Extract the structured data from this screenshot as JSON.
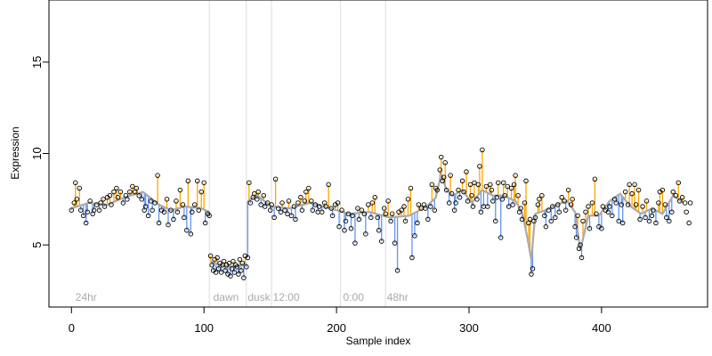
{
  "chart_data": {
    "type": "scatter",
    "title": "",
    "xlabel": "Sample index",
    "ylabel": "Expression",
    "xlim": [
      -17,
      480
    ],
    "ylim": [
      1.6,
      18.4
    ],
    "x_ticks": [
      0,
      100,
      200,
      300,
      400
    ],
    "y_ticks": [
      5,
      10,
      15
    ],
    "grid": false,
    "colors": {
      "points_stroke": "#000000",
      "fit_line": "#aaaaaa",
      "residual_above": "#ffa500",
      "residual_below": "#6495ed",
      "separators": "#dddddd",
      "annotations": "#aaaaaa"
    },
    "annotations": [
      {
        "label": "24hr",
        "x": 3
      },
      {
        "label": "dawn",
        "x": 107
      },
      {
        "label": "dusk",
        "x": 133
      },
      {
        "label": "12:00",
        "x": 152
      },
      {
        "label": "0:00",
        "x": 205
      },
      {
        "label": "48hr",
        "x": 238
      }
    ],
    "separators_x": [
      104,
      132,
      151,
      203,
      237
    ],
    "segments": [
      {
        "x": [
          0,
          13,
          27,
          40,
          54,
          66,
          75,
          86,
          98,
          104
        ],
        "y": [
          7.0,
          7.3,
          7.2,
          7.6,
          7.9,
          7.2,
          6.9,
          7.1,
          7.0,
          6.8
        ]
      },
      {
        "x": [
          105,
          112,
          120,
          128,
          132
        ],
        "y": [
          4.1,
          3.9,
          3.8,
          3.9,
          4.0
        ]
      },
      {
        "x": [
          133,
          140,
          151,
          165,
          180,
          195,
          210,
          225,
          240,
          255,
          268,
          275,
          279,
          283,
          288,
          295,
          302,
          310,
          318,
          326,
          335,
          340,
          344,
          347,
          350,
          358,
          366,
          374,
          380,
          384,
          390,
          398,
          406,
          414,
          422,
          430,
          438,
          446,
          454,
          462
        ],
        "y": [
          7.4,
          7.7,
          7.1,
          7.0,
          7.3,
          7.0,
          6.7,
          6.8,
          6.5,
          6.6,
          7.1,
          7.6,
          8.9,
          8.0,
          7.7,
          8.0,
          7.3,
          8.0,
          7.7,
          7.7,
          7.4,
          6.8,
          5.4,
          4.2,
          6.7,
          6.9,
          7.2,
          7.4,
          6.8,
          4.7,
          6.6,
          6.6,
          7.4,
          7.8,
          7.1,
          6.7,
          7.0,
          6.7,
          7.7,
          7.3
        ]
      }
    ],
    "points": [
      [
        0,
        6.9
      ],
      [
        2,
        7.3
      ],
      [
        3,
        8.4
      ],
      [
        4,
        7.5
      ],
      [
        6,
        8.1
      ],
      [
        7,
        6.9
      ],
      [
        9,
        6.6
      ],
      [
        11,
        6.2
      ],
      [
        12,
        6.8
      ],
      [
        14,
        7.4
      ],
      [
        16,
        6.7
      ],
      [
        17,
        6.9
      ],
      [
        19,
        7.2
      ],
      [
        21,
        6.9
      ],
      [
        22,
        7.3
      ],
      [
        24,
        7.5
      ],
      [
        25,
        7.1
      ],
      [
        27,
        7.6
      ],
      [
        29,
        7.7
      ],
      [
        30,
        7.2
      ],
      [
        32,
        7.9
      ],
      [
        34,
        8.1
      ],
      [
        35,
        7.6
      ],
      [
        37,
        7.9
      ],
      [
        39,
        7.3
      ],
      [
        41,
        7.7
      ],
      [
        42,
        7.5
      ],
      [
        44,
        7.9
      ],
      [
        46,
        8.2
      ],
      [
        48,
        7.9
      ],
      [
        49,
        8.1
      ],
      [
        51,
        7.7
      ],
      [
        53,
        7.5
      ],
      [
        55,
        6.9
      ],
      [
        56,
        7.1
      ],
      [
        58,
        6.6
      ],
      [
        60,
        7.4
      ],
      [
        61,
        6.9
      ],
      [
        63,
        7.3
      ],
      [
        65,
        8.8
      ],
      [
        66,
        6.2
      ],
      [
        68,
        6.9
      ],
      [
        70,
        6.8
      ],
      [
        72,
        7.5
      ],
      [
        73,
        6.1
      ],
      [
        75,
        6.9
      ],
      [
        77,
        6.4
      ],
      [
        79,
        7.4
      ],
      [
        80,
        6.8
      ],
      [
        82,
        8.0
      ],
      [
        84,
        7.2
      ],
      [
        85,
        6.5
      ],
      [
        87,
        5.8
      ],
      [
        88,
        8.5
      ],
      [
        90,
        5.6
      ],
      [
        91,
        6.8
      ],
      [
        93,
        7.2
      ],
      [
        95,
        8.5
      ],
      [
        96,
        6.9
      ],
      [
        98,
        7.9
      ],
      [
        100,
        8.4
      ],
      [
        101,
        6.2
      ],
      [
        103,
        6.7
      ],
      [
        104,
        6.6
      ],
      [
        105,
        4.4
      ],
      [
        106,
        3.9
      ],
      [
        107,
        3.6
      ],
      [
        108,
        4.2
      ],
      [
        109,
        3.5
      ],
      [
        110,
        4.3
      ],
      [
        111,
        3.7
      ],
      [
        112,
        4.0
      ],
      [
        113,
        3.5
      ],
      [
        114,
        3.9
      ],
      [
        115,
        4.1
      ],
      [
        116,
        3.6
      ],
      [
        117,
        3.9
      ],
      [
        118,
        3.4
      ],
      [
        119,
        4.0
      ],
      [
        120,
        3.3
      ],
      [
        121,
        3.7
      ],
      [
        122,
        4.1
      ],
      [
        123,
        3.5
      ],
      [
        124,
        3.9
      ],
      [
        125,
        3.8
      ],
      [
        126,
        3.4
      ],
      [
        127,
        4.2
      ],
      [
        128,
        3.6
      ],
      [
        129,
        4.0
      ],
      [
        130,
        3.2
      ],
      [
        131,
        4.4
      ],
      [
        132,
        3.8
      ],
      [
        133,
        4.3
      ],
      [
        134,
        8.4
      ],
      [
        135,
        7.3
      ],
      [
        137,
        7.6
      ],
      [
        138,
        7.8
      ],
      [
        140,
        7.5
      ],
      [
        141,
        7.9
      ],
      [
        143,
        7.2
      ],
      [
        145,
        7.7
      ],
      [
        146,
        7.1
      ],
      [
        148,
        7.3
      ],
      [
        150,
        6.9
      ],
      [
        151,
        7.2
      ],
      [
        153,
        6.5
      ],
      [
        154,
        8.6
      ],
      [
        156,
        7.0
      ],
      [
        158,
        6.8
      ],
      [
        159,
        7.3
      ],
      [
        161,
        6.9
      ],
      [
        163,
        6.7
      ],
      [
        164,
        7.4
      ],
      [
        166,
        6.6
      ],
      [
        168,
        7.1
      ],
      [
        169,
        6.4
      ],
      [
        171,
        7.3
      ],
      [
        173,
        7.6
      ],
      [
        174,
        6.9
      ],
      [
        176,
        7.4
      ],
      [
        177,
        7.9
      ],
      [
        179,
        8.1
      ],
      [
        181,
        7.4
      ],
      [
        182,
        6.9
      ],
      [
        184,
        7.2
      ],
      [
        186,
        6.8
      ],
      [
        187,
        7.1
      ],
      [
        189,
        6.8
      ],
      [
        191,
        7.3
      ],
      [
        192,
        7.1
      ],
      [
        194,
        8.3
      ],
      [
        196,
        7.0
      ],
      [
        197,
        6.6
      ],
      [
        199,
        7.2
      ],
      [
        201,
        7.3
      ],
      [
        202,
        6.0
      ],
      [
        204,
        6.9
      ],
      [
        206,
        5.8
      ],
      [
        207,
        6.3
      ],
      [
        209,
        6.7
      ],
      [
        211,
        5.9
      ],
      [
        212,
        6.6
      ],
      [
        214,
        5.1
      ],
      [
        216,
        7.0
      ],
      [
        217,
        6.4
      ],
      [
        219,
        6.9
      ],
      [
        221,
        6.7
      ],
      [
        222,
        5.6
      ],
      [
        224,
        7.2
      ],
      [
        226,
        6.5
      ],
      [
        227,
        7.3
      ],
      [
        229,
        7.6
      ],
      [
        231,
        6.5
      ],
      [
        232,
        5.8
      ],
      [
        234,
        5.2
      ],
      [
        236,
        7.0
      ],
      [
        237,
        6.7
      ],
      [
        239,
        7.4
      ],
      [
        241,
        6.3
      ],
      [
        242,
        6.7
      ],
      [
        244,
        5.1
      ],
      [
        246,
        3.6
      ],
      [
        247,
        6.8
      ],
      [
        249,
        6.9
      ],
      [
        251,
        7.1
      ],
      [
        252,
        6.3
      ],
      [
        254,
        7.5
      ],
      [
        256,
        8.1
      ],
      [
        257,
        4.3
      ],
      [
        259,
        5.5
      ],
      [
        261,
        6.2
      ],
      [
        262,
        7.2
      ],
      [
        264,
        7.0
      ],
      [
        266,
        7.2
      ],
      [
        267,
        7.0
      ],
      [
        269,
        6.4
      ],
      [
        271,
        7.1
      ],
      [
        272,
        8.3
      ],
      [
        274,
        6.9
      ],
      [
        275,
        8.1
      ],
      [
        276,
        8.0
      ],
      [
        278,
        9.1
      ],
      [
        279,
        9.8
      ],
      [
        280,
        8.5
      ],
      [
        281,
        8.7
      ],
      [
        282,
        9.5
      ],
      [
        283,
        8.0
      ],
      [
        285,
        7.3
      ],
      [
        286,
        8.8
      ],
      [
        287,
        7.8
      ],
      [
        289,
        6.9
      ],
      [
        290,
        7.3
      ],
      [
        292,
        8.0
      ],
      [
        293,
        7.6
      ],
      [
        295,
        8.5
      ],
      [
        296,
        7.9
      ],
      [
        298,
        9.0
      ],
      [
        299,
        7.4
      ],
      [
        301,
        8.3
      ],
      [
        302,
        7.7
      ],
      [
        303,
        7.1
      ],
      [
        304,
        8.4
      ],
      [
        306,
        7.5
      ],
      [
        307,
        8.3
      ],
      [
        308,
        9.3
      ],
      [
        309,
        6.8
      ],
      [
        310,
        10.2
      ],
      [
        311,
        7.1
      ],
      [
        313,
        8.2
      ],
      [
        314,
        7.1
      ],
      [
        316,
        8.3
      ],
      [
        317,
        8.0
      ],
      [
        318,
        7.4
      ],
      [
        320,
        6.3
      ],
      [
        321,
        7.6
      ],
      [
        322,
        8.4
      ],
      [
        324,
        5.4
      ],
      [
        325,
        7.5
      ],
      [
        326,
        8.4
      ],
      [
        327,
        7.7
      ],
      [
        329,
        8.2
      ],
      [
        330,
        7.1
      ],
      [
        332,
        8.1
      ],
      [
        333,
        7.2
      ],
      [
        334,
        8.3
      ],
      [
        335,
        8.8
      ],
      [
        337,
        7.7
      ],
      [
        338,
        6.8
      ],
      [
        339,
        7.0
      ],
      [
        340,
        6.4
      ],
      [
        342,
        7.3
      ],
      [
        343,
        8.5
      ],
      [
        345,
        6.2
      ],
      [
        346,
        6.4
      ],
      [
        347,
        3.4
      ],
      [
        348,
        3.7
      ],
      [
        349,
        6.3
      ],
      [
        350,
        6.5
      ],
      [
        352,
        7.2
      ],
      [
        353,
        7.5
      ],
      [
        355,
        7.7
      ],
      [
        357,
        6.6
      ],
      [
        358,
        6.0
      ],
      [
        360,
        6.9
      ],
      [
        362,
        6.3
      ],
      [
        363,
        7.1
      ],
      [
        365,
        6.5
      ],
      [
        367,
        7.2
      ],
      [
        368,
        6.8
      ],
      [
        370,
        7.6
      ],
      [
        372,
        7.4
      ],
      [
        373,
        6.9
      ],
      [
        375,
        8.0
      ],
      [
        377,
        7.2
      ],
      [
        378,
        7.5
      ],
      [
        380,
        6.0
      ],
      [
        381,
        5.4
      ],
      [
        382,
        6.6
      ],
      [
        383,
        4.8
      ],
      [
        384,
        5.0
      ],
      [
        385,
        4.3
      ],
      [
        386,
        6.3
      ],
      [
        388,
        6.8
      ],
      [
        390,
        7.1
      ],
      [
        391,
        5.9
      ],
      [
        393,
        7.3
      ],
      [
        395,
        8.6
      ],
      [
        396,
        6.7
      ],
      [
        398,
        6.0
      ],
      [
        400,
        5.9
      ],
      [
        401,
        7.1
      ],
      [
        403,
        6.9
      ],
      [
        405,
        6.8
      ],
      [
        406,
        7.1
      ],
      [
        408,
        6.6
      ],
      [
        410,
        7.5
      ],
      [
        411,
        7.3
      ],
      [
        413,
        6.3
      ],
      [
        415,
        7.2
      ],
      [
        416,
        6.2
      ],
      [
        418,
        7.9
      ],
      [
        420,
        7.2
      ],
      [
        421,
        8.3
      ],
      [
        423,
        7.8
      ],
      [
        425,
        8.3
      ],
      [
        426,
        7.2
      ],
      [
        428,
        8.0
      ],
      [
        429,
        6.4
      ],
      [
        431,
        7.1
      ],
      [
        433,
        6.5
      ],
      [
        434,
        7.4
      ],
      [
        436,
        6.3
      ],
      [
        438,
        6.6
      ],
      [
        439,
        6.9
      ],
      [
        441,
        6.2
      ],
      [
        443,
        7.3
      ],
      [
        444,
        7.9
      ],
      [
        446,
        8.0
      ],
      [
        448,
        7.2
      ],
      [
        449,
        6.5
      ],
      [
        451,
        6.3
      ],
      [
        453,
        6.8
      ],
      [
        454,
        7.9
      ],
      [
        456,
        7.7
      ],
      [
        458,
        8.4
      ],
      [
        459,
        7.4
      ],
      [
        461,
        7.6
      ],
      [
        463,
        7.3
      ],
      [
        464,
        6.8
      ],
      [
        466,
        6.2
      ],
      [
        467,
        7.3
      ]
    ]
  }
}
